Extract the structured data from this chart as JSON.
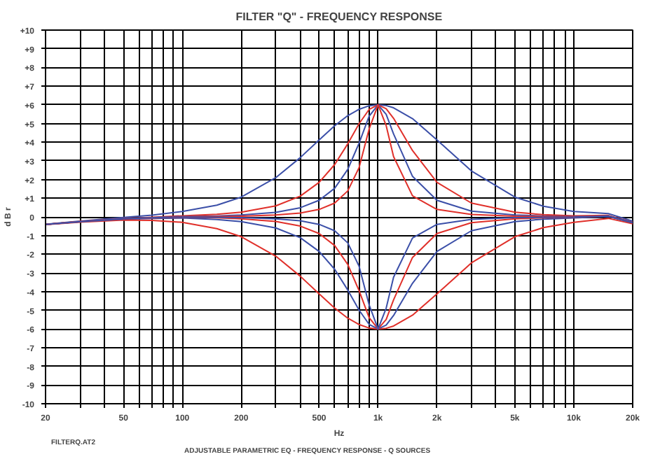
{
  "chart_data": {
    "type": "line",
    "title": "FILTER \"Q\" - FREQUENCY RESPONSE",
    "xlabel": "Hz",
    "ylabel": "d B r",
    "annotations": [
      "FILTERQ.AT2",
      "ADJUSTABLE PARAMETRIC EQ - FREQUENCY RESPONSE - Q SOURCES"
    ],
    "log": "x",
    "grid": true,
    "line_style": "solid",
    "xlim": [
      20,
      20000
    ],
    "ylim": [
      -10,
      10
    ],
    "xticks": [
      20,
      {
        "value": 30,
        "label": null
      },
      {
        "value": 40,
        "label": null
      },
      50,
      {
        "value": 60,
        "label": null
      },
      {
        "value": 70,
        "label": null
      },
      {
        "value": 80,
        "label": null
      },
      {
        "value": 90,
        "label": null
      },
      100,
      200,
      {
        "value": 300,
        "label": null
      },
      {
        "value": 400,
        "label": null
      },
      500,
      {
        "value": 600,
        "label": null
      },
      {
        "value": 700,
        "label": null
      },
      {
        "value": 800,
        "label": null
      },
      {
        "value": 900,
        "label": null
      },
      {
        "value": 1000,
        "label": "1k"
      },
      {
        "value": 2000,
        "label": "2k"
      },
      {
        "value": 3000,
        "label": null
      },
      {
        "value": 4000,
        "label": null
      },
      {
        "value": 5000,
        "label": "5k"
      },
      {
        "value": 6000,
        "label": null
      },
      {
        "value": 7000,
        "label": null
      },
      {
        "value": 8000,
        "label": null
      },
      {
        "value": 9000,
        "label": null
      },
      {
        "value": 10000,
        "label": "10k"
      },
      {
        "value": 20000,
        "label": "20k"
      }
    ],
    "yticks": [
      {
        "value": 10,
        "label": "+10"
      },
      {
        "value": 9,
        "label": "+9"
      },
      {
        "value": 8,
        "label": "+8"
      },
      {
        "value": 7,
        "label": "+7"
      },
      {
        "value": 6,
        "label": "+6"
      },
      {
        "value": 5,
        "label": "+5"
      },
      {
        "value": 4,
        "label": "+4"
      },
      {
        "value": 3,
        "label": "+3"
      },
      {
        "value": 2,
        "label": "+2"
      },
      {
        "value": 1,
        "label": "+1"
      },
      0,
      -1,
      -2,
      -3,
      -4,
      -5,
      -6,
      -7,
      -8,
      -9,
      -10
    ],
    "x": [
      20,
      30,
      50,
      70,
      100,
      150,
      200,
      300,
      400,
      500,
      600,
      700,
      800,
      900,
      1000,
      1100,
      1200,
      1500,
      2000,
      3000,
      5000,
      7000,
      10000,
      15000,
      20000
    ],
    "series": [
      {
        "color": "#3b4fa8",
        "values": [
          -0.39,
          -0.22,
          -0.03,
          0.09,
          0.29,
          0.63,
          1.06,
          2.1,
          3.17,
          4.12,
          4.88,
          5.42,
          5.76,
          5.95,
          6,
          5.96,
          5.84,
          5.26,
          4.12,
          2.46,
          1.06,
          0.57,
          0.29,
          0.18,
          -0.23
        ]
      },
      {
        "color": "#e0302a",
        "values": [
          -0.4,
          -0.24,
          -0.09,
          -0.02,
          0.06,
          0.14,
          0.25,
          0.59,
          1.11,
          1.85,
          2.8,
          3.91,
          4.99,
          5.75,
          6,
          5.79,
          5.28,
          3.55,
          1.85,
          0.74,
          0.25,
          0.12,
          0.06,
          0.08,
          -0.29
        ]
      },
      {
        "color": "#3b4fa8",
        "values": [
          -0.4,
          -0.25,
          -0.09,
          -0.04,
          0.02,
          0.05,
          0.1,
          0.24,
          0.49,
          0.89,
          1.53,
          2.54,
          3.95,
          5.39,
          6,
          5.49,
          4.44,
          2.17,
          0.89,
          0.31,
          0.1,
          0.05,
          0.02,
          0.05,
          -0.3
        ]
      },
      {
        "color": "#e0302a",
        "values": [
          -0.4,
          -0.25,
          -0.1,
          -0.05,
          0.01,
          0.02,
          0.04,
          0.1,
          0.21,
          0.4,
          0.74,
          1.39,
          2.64,
          4.7,
          6,
          4.89,
          3.23,
          1.13,
          0.4,
          0.13,
          0.04,
          0.02,
          0.01,
          0.05,
          -0.3
        ]
      },
      {
        "color": "#e0302a",
        "values": [
          -0.41,
          -0.28,
          -0.17,
          -0.19,
          -0.29,
          -0.63,
          -1.06,
          -2.1,
          -3.17,
          -4.12,
          -4.88,
          -5.42,
          -5.76,
          -5.95,
          -6,
          -5.96,
          -5.84,
          -5.26,
          -4.12,
          -2.46,
          -1.06,
          -0.57,
          -0.29,
          -0.08,
          -0.37
        ]
      },
      {
        "color": "#3b4fa8",
        "values": [
          -0.4,
          -0.26,
          -0.12,
          -0.08,
          -0.06,
          -0.14,
          -0.25,
          -0.59,
          -1.11,
          -1.85,
          -2.8,
          -3.91,
          -4.99,
          -5.75,
          -6,
          -5.79,
          -5.28,
          -3.55,
          -1.85,
          -0.74,
          -0.25,
          -0.12,
          -0.06,
          0.02,
          -0.32
        ]
      },
      {
        "color": "#e0302a",
        "values": [
          -0.4,
          -0.25,
          -0.11,
          -0.06,
          -0.02,
          -0.05,
          -0.1,
          -0.24,
          -0.49,
          -0.89,
          -1.53,
          -2.54,
          -3.95,
          -5.39,
          -6,
          -5.49,
          -4.44,
          -2.17,
          -0.89,
          -0.31,
          -0.1,
          -0.05,
          -0.02,
          0.05,
          -0.3
        ]
      },
      {
        "color": "#3b4fa8",
        "values": [
          -0.4,
          -0.25,
          -0.1,
          -0.05,
          -0.01,
          -0.02,
          -0.04,
          -0.1,
          -0.21,
          -0.4,
          -0.74,
          -1.39,
          -2.64,
          -4.7,
          -6,
          -4.89,
          -3.23,
          -1.13,
          -0.4,
          -0.13,
          -0.04,
          -0.02,
          -0.01,
          0.05,
          -0.3
        ]
      }
    ]
  }
}
